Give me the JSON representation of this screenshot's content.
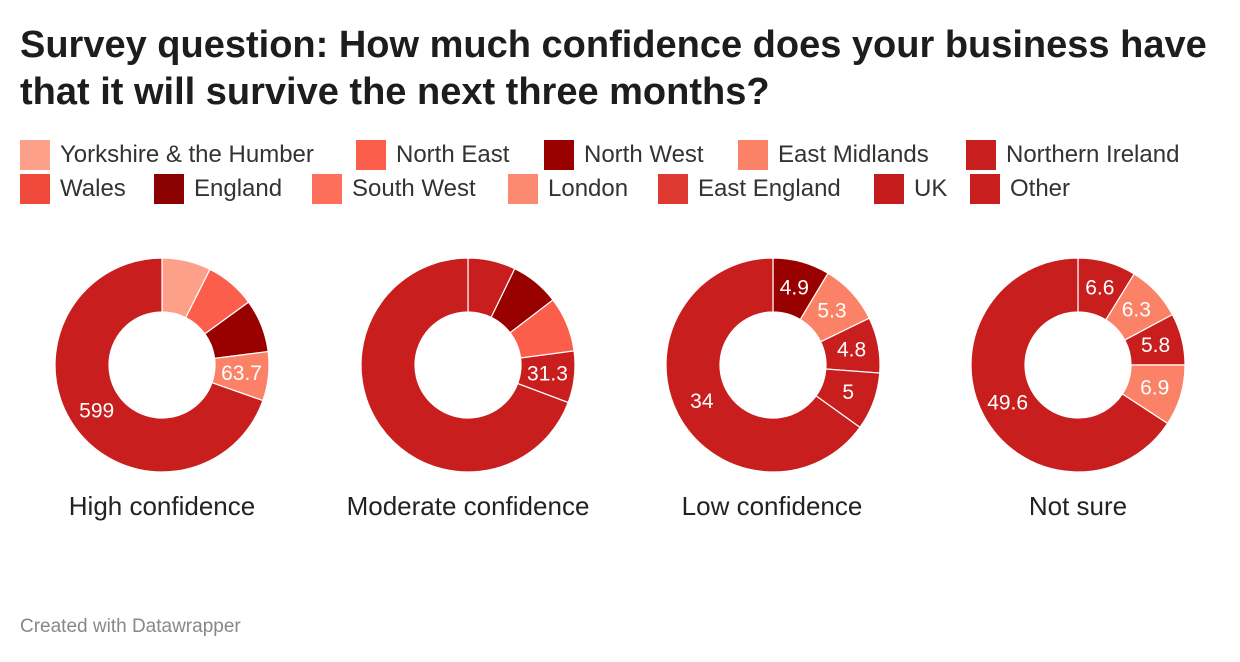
{
  "title": "Survey question: How much confidence does your business have that it will survive the next three months?",
  "footer": "Created with Datawrapper",
  "legend": [
    {
      "name": "Yorkshire & the Humber",
      "color": "#fca08a"
    },
    {
      "name": "North East",
      "color": "#fb5f4c"
    },
    {
      "name": "North West",
      "color": "#990000"
    },
    {
      "name": "East Midlands",
      "color": "#fb8266"
    },
    {
      "name": "Northern Ireland",
      "color": "#c81e1e"
    },
    {
      "name": "Wales",
      "color": "#ef4a3c"
    },
    {
      "name": "England",
      "color": "#8b0000"
    },
    {
      "name": "South West",
      "color": "#fd6f5a"
    },
    {
      "name": "London",
      "color": "#fc8a70"
    },
    {
      "name": "East England",
      "color": "#de3a31"
    },
    {
      "name": "UK",
      "color": "#c41c1c"
    },
    {
      "name": "Other",
      "color": "#c81e1e"
    }
  ],
  "chart_data": {
    "type": "pie",
    "variant": "donut",
    "legend_position": "top",
    "charts": [
      {
        "label": "High confidence",
        "slices": [
          {
            "color": "#fca08a",
            "fraction": 0.074,
            "label": ""
          },
          {
            "color": "#fb5f4c",
            "fraction": 0.076,
            "label": ""
          },
          {
            "color": "#990000",
            "fraction": 0.08,
            "label": ""
          },
          {
            "color": "#fb8266",
            "fraction": 0.074,
            "label": "63.7"
          },
          {
            "color": "#c81e1e",
            "fraction": 0.696,
            "label": "599"
          }
        ]
      },
      {
        "label": "Moderate confidence",
        "slices": [
          {
            "color": "#c81e1e",
            "fraction": 0.072,
            "label": ""
          },
          {
            "color": "#990000",
            "fraction": 0.074,
            "label": ""
          },
          {
            "color": "#fb5f4c",
            "fraction": 0.083,
            "label": ""
          },
          {
            "color": "#c81e1e",
            "fraction": 0.078,
            "label": "31.3"
          },
          {
            "color": "#c81e1e",
            "fraction": 0.693,
            "label": ""
          }
        ]
      },
      {
        "label": "Low confidence",
        "slices": [
          {
            "color": "#990000",
            "fraction": 0.086,
            "label": "4.9"
          },
          {
            "color": "#fb8266",
            "fraction": 0.092,
            "label": "5.3"
          },
          {
            "color": "#c81e1e",
            "fraction": 0.084,
            "label": "4.8"
          },
          {
            "color": "#c81e1e",
            "fraction": 0.087,
            "label": "5"
          },
          {
            "color": "#c81e1e",
            "fraction": 0.651,
            "label": "34"
          }
        ]
      },
      {
        "label": "Not sure",
        "slices": [
          {
            "color": "#c81e1e",
            "fraction": 0.088,
            "label": "6.6"
          },
          {
            "color": "#fb8266",
            "fraction": 0.084,
            "label": "6.3"
          },
          {
            "color": "#c81e1e",
            "fraction": 0.078,
            "label": "5.8"
          },
          {
            "color": "#fb8266",
            "fraction": 0.092,
            "label": "6.9"
          },
          {
            "color": "#c81e1e",
            "fraction": 0.658,
            "label": "49.6"
          }
        ]
      }
    ]
  }
}
